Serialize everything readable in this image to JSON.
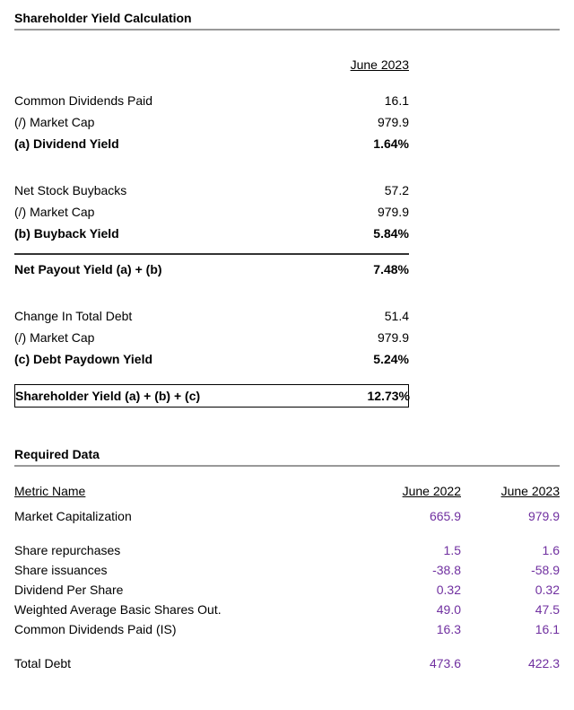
{
  "calc": {
    "title": "Shareholder Yield Calculation",
    "period": "June 2023",
    "rows": {
      "cdp": {
        "label": "Common Dividends Paid",
        "val": "16.1"
      },
      "mc1": {
        "label": "(/) Market Cap",
        "val": "979.9"
      },
      "divy": {
        "label": "(a) Dividend Yield",
        "val": "1.64%"
      },
      "nsb": {
        "label": "Net Stock Buybacks",
        "val": "57.2"
      },
      "mc2": {
        "label": "(/) Market Cap",
        "val": "979.9"
      },
      "bby": {
        "label": "(b) Buyback Yield",
        "val": "5.84%"
      },
      "npy": {
        "label": "Net Payout Yield (a) + (b)",
        "val": "7.48%"
      },
      "ctd": {
        "label": "Change In Total Debt",
        "val": "51.4"
      },
      "mc3": {
        "label": "(/) Market Cap",
        "val": "979.9"
      },
      "dpy": {
        "label": "(c) Debt Paydown Yield",
        "val": "5.24%"
      },
      "shy": {
        "label": "Shareholder Yield (a) + (b) + (c)",
        "val": "12.73%"
      }
    }
  },
  "required": {
    "title": "Required Data",
    "metric_header": "Metric Name",
    "col1": "June 2022",
    "col2": "June 2023",
    "rows": {
      "mcap": {
        "label": "Market Capitalization",
        "v1": "665.9",
        "v2": "979.9"
      },
      "repo": {
        "label": "Share repurchases",
        "v1": "1.5",
        "v2": "1.6"
      },
      "iss": {
        "label": "Share issuances",
        "v1": "-38.8",
        "v2": "-58.9"
      },
      "dps": {
        "label": "Dividend Per Share",
        "v1": "0.32",
        "v2": "0.32"
      },
      "wabs": {
        "label": "Weighted Average Basic Shares Out.",
        "v1": "49.0",
        "v2": "47.5"
      },
      "cdp": {
        "label": "Common Dividends Paid (IS)",
        "v1": "16.3",
        "v2": "16.1"
      },
      "tdebt": {
        "label": "Total Debt",
        "v1": "473.6",
        "v2": "422.3"
      }
    }
  }
}
